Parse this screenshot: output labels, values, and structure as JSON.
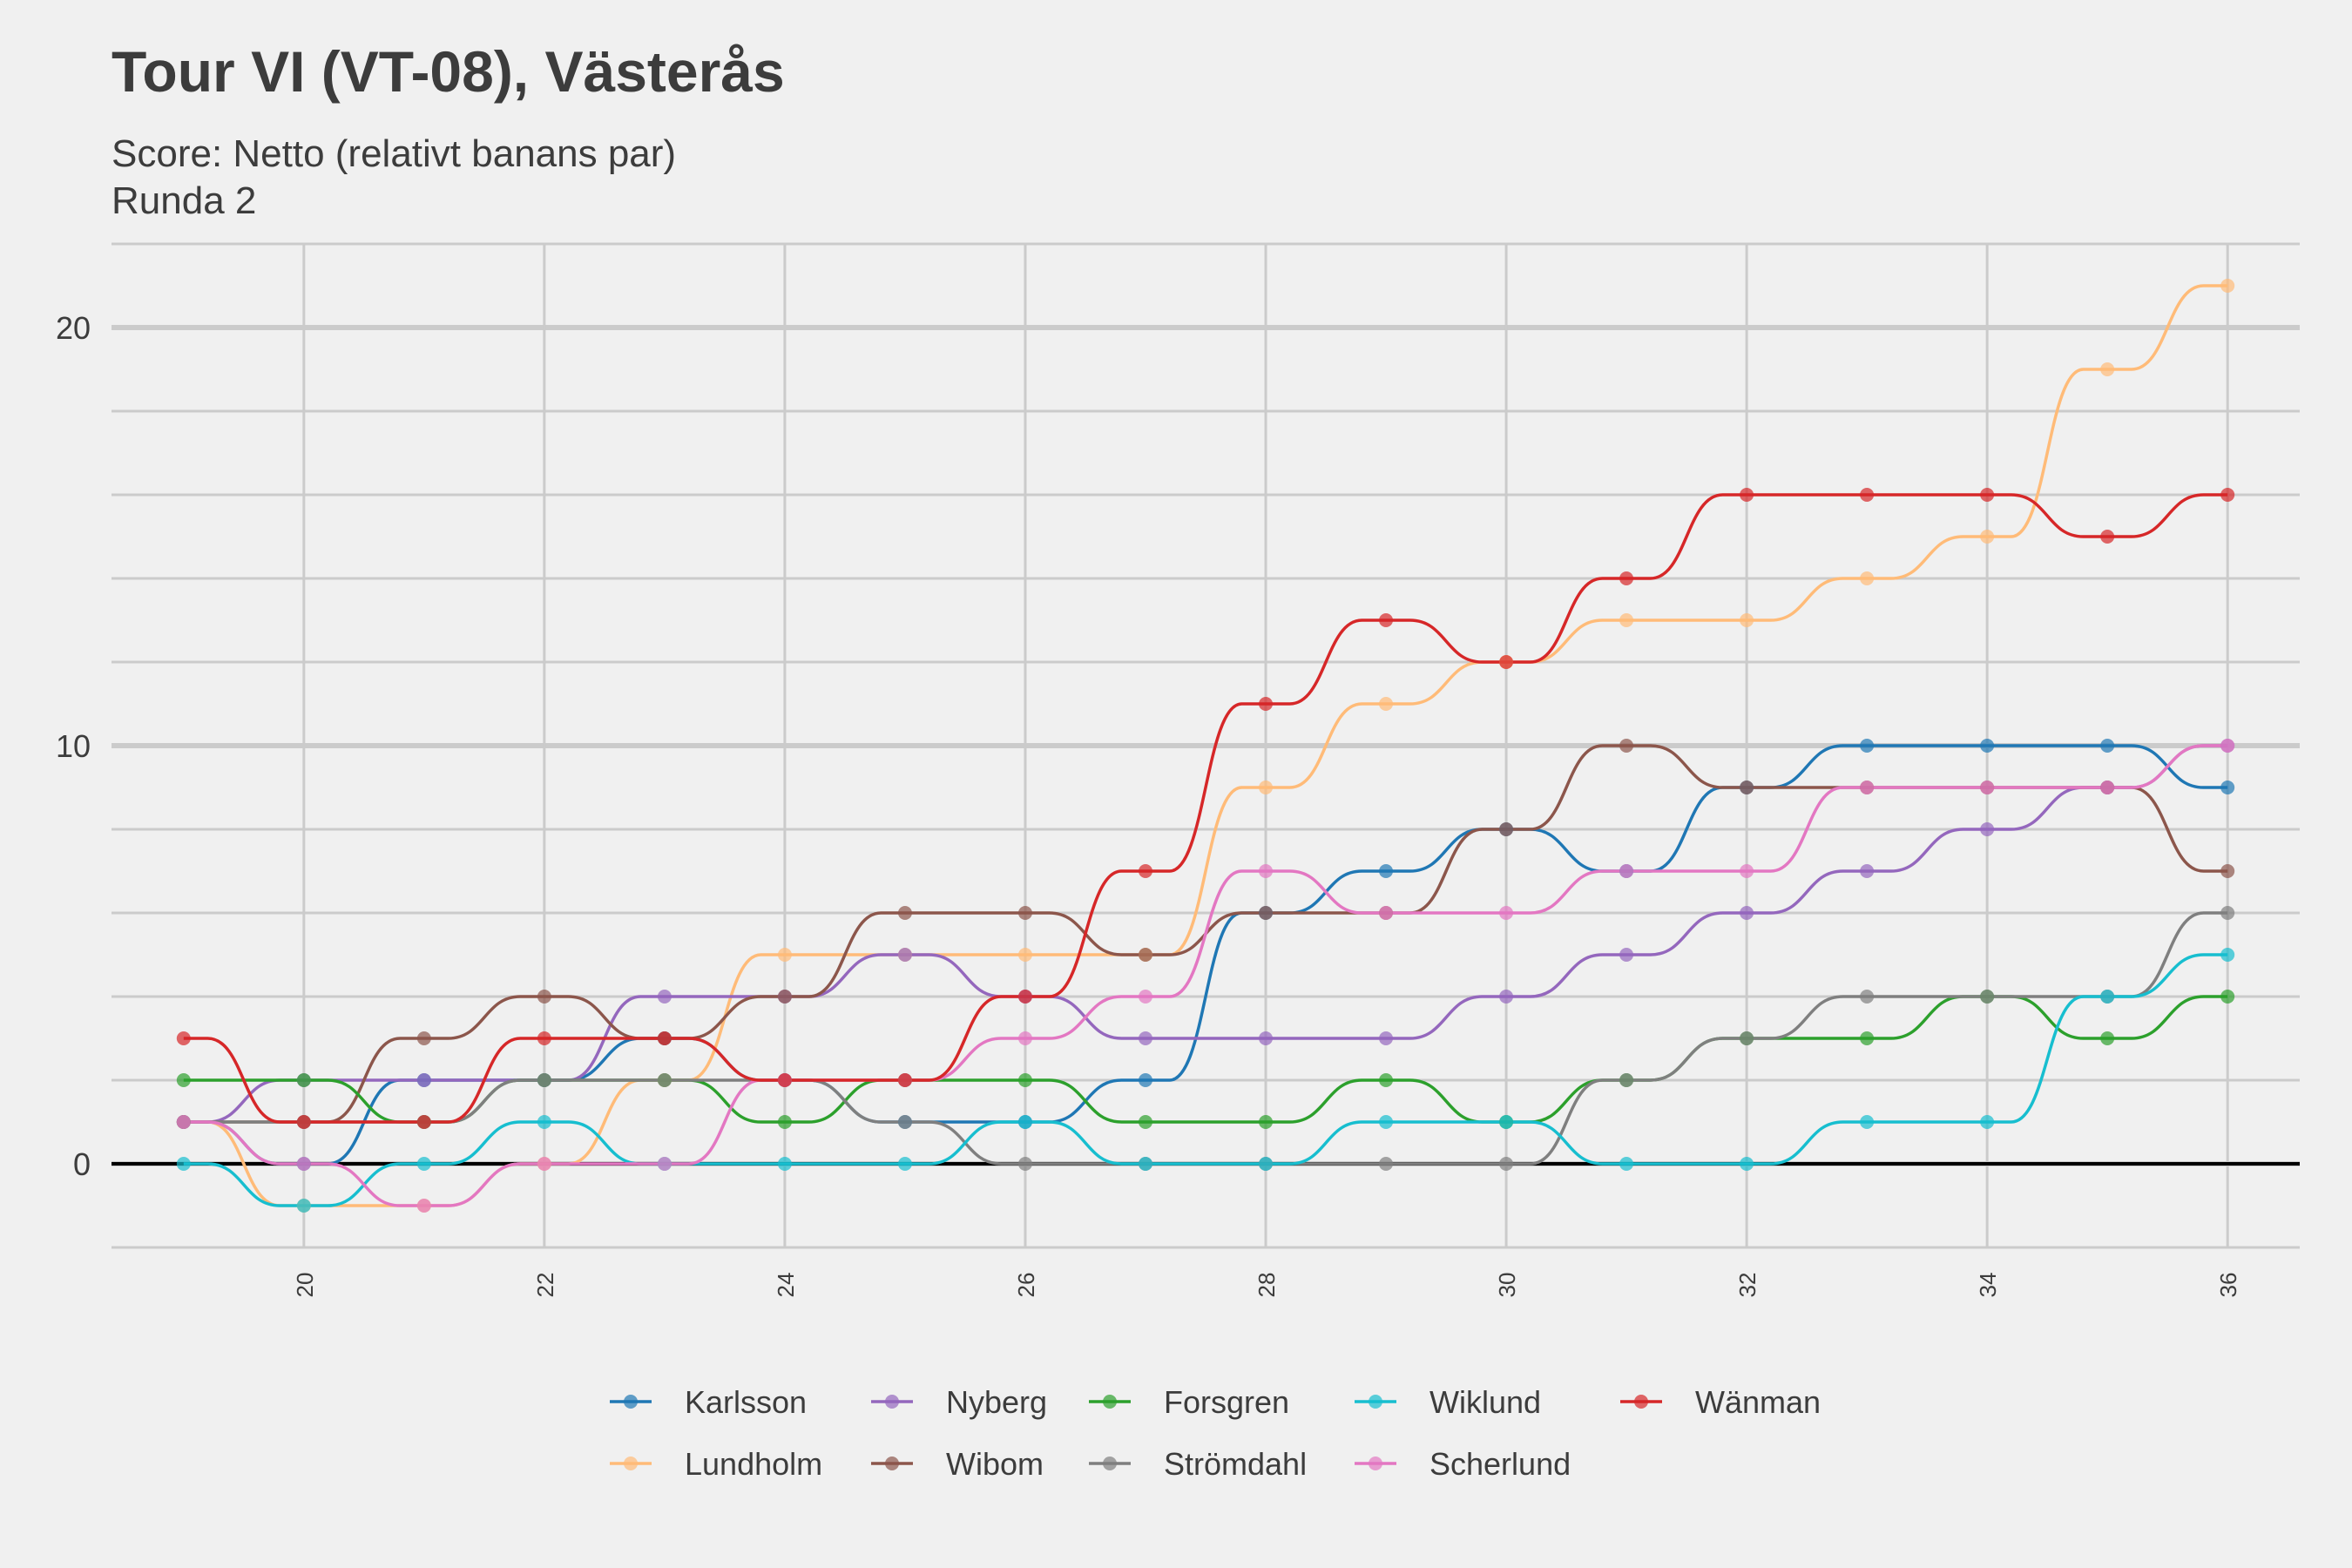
{
  "chart_data": {
    "type": "line",
    "title": "Tour VI (VT-08), Västerås",
    "subtitle_lines": [
      "Score: Netto (relativt banans par)",
      "Runda 2"
    ],
    "xlabel": "",
    "ylabel": "",
    "x": [
      19,
      20,
      21,
      22,
      23,
      24,
      25,
      26,
      27,
      28,
      29,
      30,
      31,
      32,
      33,
      34,
      35,
      36
    ],
    "xlim": [
      18.4,
      36.6
    ],
    "ylim": [
      -2,
      22
    ],
    "x_ticks": [
      20,
      22,
      24,
      26,
      28,
      30,
      32,
      34,
      36
    ],
    "y_ticks": [
      0,
      10,
      20
    ],
    "grid": true,
    "legend_position": "bottom",
    "series": [
      {
        "name": "Karlsson",
        "color": "#1f77b4",
        "values": [
          1,
          0,
          2,
          2,
          3,
          2,
          1,
          1,
          2,
          6,
          7,
          8,
          7,
          9,
          10,
          10,
          10,
          9
        ]
      },
      {
        "name": "Lundholm",
        "color": "#ffbb78",
        "values": [
          1,
          -1,
          -1,
          0,
          2,
          5,
          5,
          5,
          5,
          9,
          11,
          12,
          13,
          13,
          14,
          15,
          19,
          21
        ]
      },
      {
        "name": "Nyberg",
        "color": "#9467bd",
        "values": [
          1,
          2,
          2,
          2,
          4,
          4,
          5,
          4,
          3,
          3,
          3,
          4,
          5,
          6,
          7,
          8,
          9,
          10
        ]
      },
      {
        "name": "Wibom",
        "color": "#8c564b",
        "values": [
          1,
          1,
          3,
          4,
          3,
          4,
          6,
          6,
          5,
          6,
          6,
          8,
          10,
          9,
          9,
          9,
          9,
          7
        ]
      },
      {
        "name": "Forsgren",
        "color": "#2ca02c",
        "values": [
          2,
          2,
          1,
          2,
          2,
          1,
          2,
          2,
          1,
          1,
          2,
          1,
          2,
          3,
          3,
          4,
          3,
          4
        ]
      },
      {
        "name": "Strömdahl",
        "color": "#7f7f7f",
        "values": [
          1,
          1,
          1,
          2,
          2,
          2,
          1,
          0,
          0,
          0,
          0,
          0,
          2,
          3,
          4,
          4,
          4,
          6
        ]
      },
      {
        "name": "Wiklund",
        "color": "#17becf",
        "values": [
          0,
          -1,
          0,
          1,
          0,
          0,
          0,
          1,
          0,
          0,
          1,
          1,
          0,
          0,
          1,
          1,
          4,
          5
        ]
      },
      {
        "name": "Scherlund",
        "color": "#e377c2",
        "values": [
          1,
          0,
          -1,
          0,
          0,
          2,
          2,
          3,
          4,
          7,
          6,
          6,
          7,
          7,
          9,
          9,
          9,
          10
        ]
      },
      {
        "name": "Wänman",
        "color": "#d62728",
        "values": [
          3,
          1,
          1,
          3,
          3,
          2,
          2,
          4,
          7,
          11,
          13,
          12,
          14,
          16,
          16,
          16,
          15,
          16
        ]
      }
    ]
  }
}
